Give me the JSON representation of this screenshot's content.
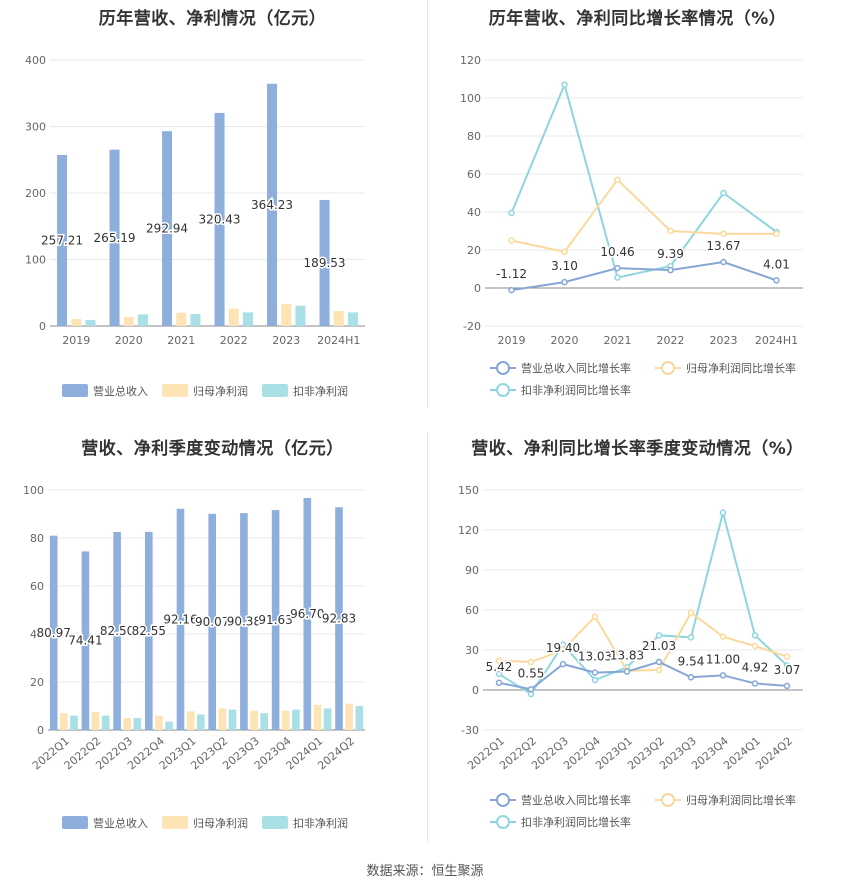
{
  "source": "数据来源：恒生聚源",
  "chart_data": [
    {
      "id": "annual_bar",
      "type": "bar",
      "title": "历年营收、净利情况（亿元）",
      "categories": [
        "2019",
        "2020",
        "2021",
        "2022",
        "2023",
        "2024H1"
      ],
      "series": [
        {
          "name": "营业总收入",
          "color": "#8eafdc",
          "values": [
            257.21,
            265.19,
            292.94,
            320.43,
            364.23,
            189.53
          ]
        },
        {
          "name": "归母净利润",
          "color": "#fde4b4",
          "values": [
            10.5,
            13.5,
            20,
            26,
            33,
            22.5
          ]
        },
        {
          "name": "扣非净利润",
          "color": "#a8e0e6",
          "values": [
            9,
            17.5,
            18,
            20.5,
            30.5,
            20.5
          ]
        }
      ],
      "data_labels": [
        "257.21",
        "265.19",
        "292.94",
        "320.43",
        "364.23",
        "189.53"
      ],
      "yticks": [
        0,
        100,
        200,
        300,
        400
      ],
      "ylim": [
        0,
        400
      ],
      "legend": "bottom"
    },
    {
      "id": "annual_line",
      "type": "line",
      "title": "历年营收、净利同比增长率情况（%）",
      "categories": [
        "2019",
        "2020",
        "2021",
        "2022",
        "2023",
        "2024H1"
      ],
      "series": [
        {
          "name": "营业总收入同比增长率",
          "color": "#86a6d6",
          "values": [
            -1.12,
            3.1,
            10.46,
            9.39,
            13.67,
            4.01
          ],
          "labels": [
            "-1.12",
            "3.10",
            "10.46",
            "9.39",
            "13.67",
            "4.01"
          ]
        },
        {
          "name": "归母净利润同比增长率",
          "color": "#fbd99c",
          "values": [
            25,
            19,
            57,
            30,
            28.5,
            28.5
          ]
        },
        {
          "name": "扣非净利润同比增长率",
          "color": "#8ed6df",
          "values": [
            39.5,
            107,
            5.5,
            11.5,
            50,
            29.5
          ]
        }
      ],
      "yticks": [
        -20,
        0,
        20,
        40,
        60,
        80,
        100,
        120
      ],
      "ylim": [
        -20,
        120
      ],
      "legend": "bottom"
    },
    {
      "id": "quarter_bar",
      "type": "bar",
      "title": "营收、净利季度变动情况（亿元）",
      "categories": [
        "2022Q1",
        "2022Q2",
        "2022Q3",
        "2022Q4",
        "2023Q1",
        "2023Q2",
        "2023Q3",
        "2023Q4",
        "2024Q1",
        "2024Q2"
      ],
      "series": [
        {
          "name": "营业总收入",
          "color": "#8eafdc",
          "values": [
            80.97,
            74.41,
            82.5,
            82.55,
            92.16,
            90.07,
            90.38,
            91.63,
            96.7,
            92.83
          ]
        },
        {
          "name": "归母净利润",
          "color": "#fde4b4",
          "values": [
            7,
            7.5,
            5,
            6,
            7.8,
            9,
            8,
            8,
            10.5,
            11
          ]
        },
        {
          "name": "扣非净利润",
          "color": "#a8e0e6",
          "values": [
            6,
            6,
            5,
            3.5,
            6.5,
            8.5,
            7,
            8.5,
            9,
            10
          ]
        }
      ],
      "data_labels": [
        "80.97",
        "74.41",
        "82.50",
        "82.55",
        "92.16",
        "90.07",
        "90.38",
        "91.63",
        "96.70",
        "92.83"
      ],
      "yticks": [
        0,
        20,
        40,
        60,
        80,
        100
      ],
      "ylim": [
        0,
        100
      ],
      "legend": "bottom"
    },
    {
      "id": "quarter_line",
      "type": "line",
      "title": "营收、净利同比增长率季度变动情况（%）",
      "categories": [
        "2022Q1",
        "2022Q2",
        "2022Q3",
        "2022Q4",
        "2023Q1",
        "2023Q2",
        "2023Q3",
        "2023Q4",
        "2024Q1",
        "2024Q2"
      ],
      "series": [
        {
          "name": "营业总收入同比增长率",
          "color": "#86a6d6",
          "values": [
            5.42,
            0.55,
            19.4,
            13.03,
            13.83,
            21.03,
            9.54,
            11.0,
            4.92,
            3.07
          ],
          "labels": [
            "5.42",
            "0.55",
            "19.40",
            "13.03",
            "13.83",
            "21.03",
            "9.54",
            "11.00",
            "4.92",
            "3.07"
          ]
        },
        {
          "name": "归母净利润同比增长率",
          "color": "#fbd99c",
          "values": [
            22,
            21,
            30,
            55,
            14.5,
            15,
            58,
            40,
            33,
            25
          ]
        },
        {
          "name": "扣非净利润同比增长率",
          "color": "#8ed6df",
          "values": [
            12,
            -3,
            34,
            7.5,
            17,
            41,
            39.5,
            133,
            41,
            18.5
          ]
        }
      ],
      "yticks": [
        -30,
        0,
        30,
        60,
        90,
        120,
        150
      ],
      "ylim": [
        -30,
        150
      ],
      "legend": "bottom"
    }
  ]
}
